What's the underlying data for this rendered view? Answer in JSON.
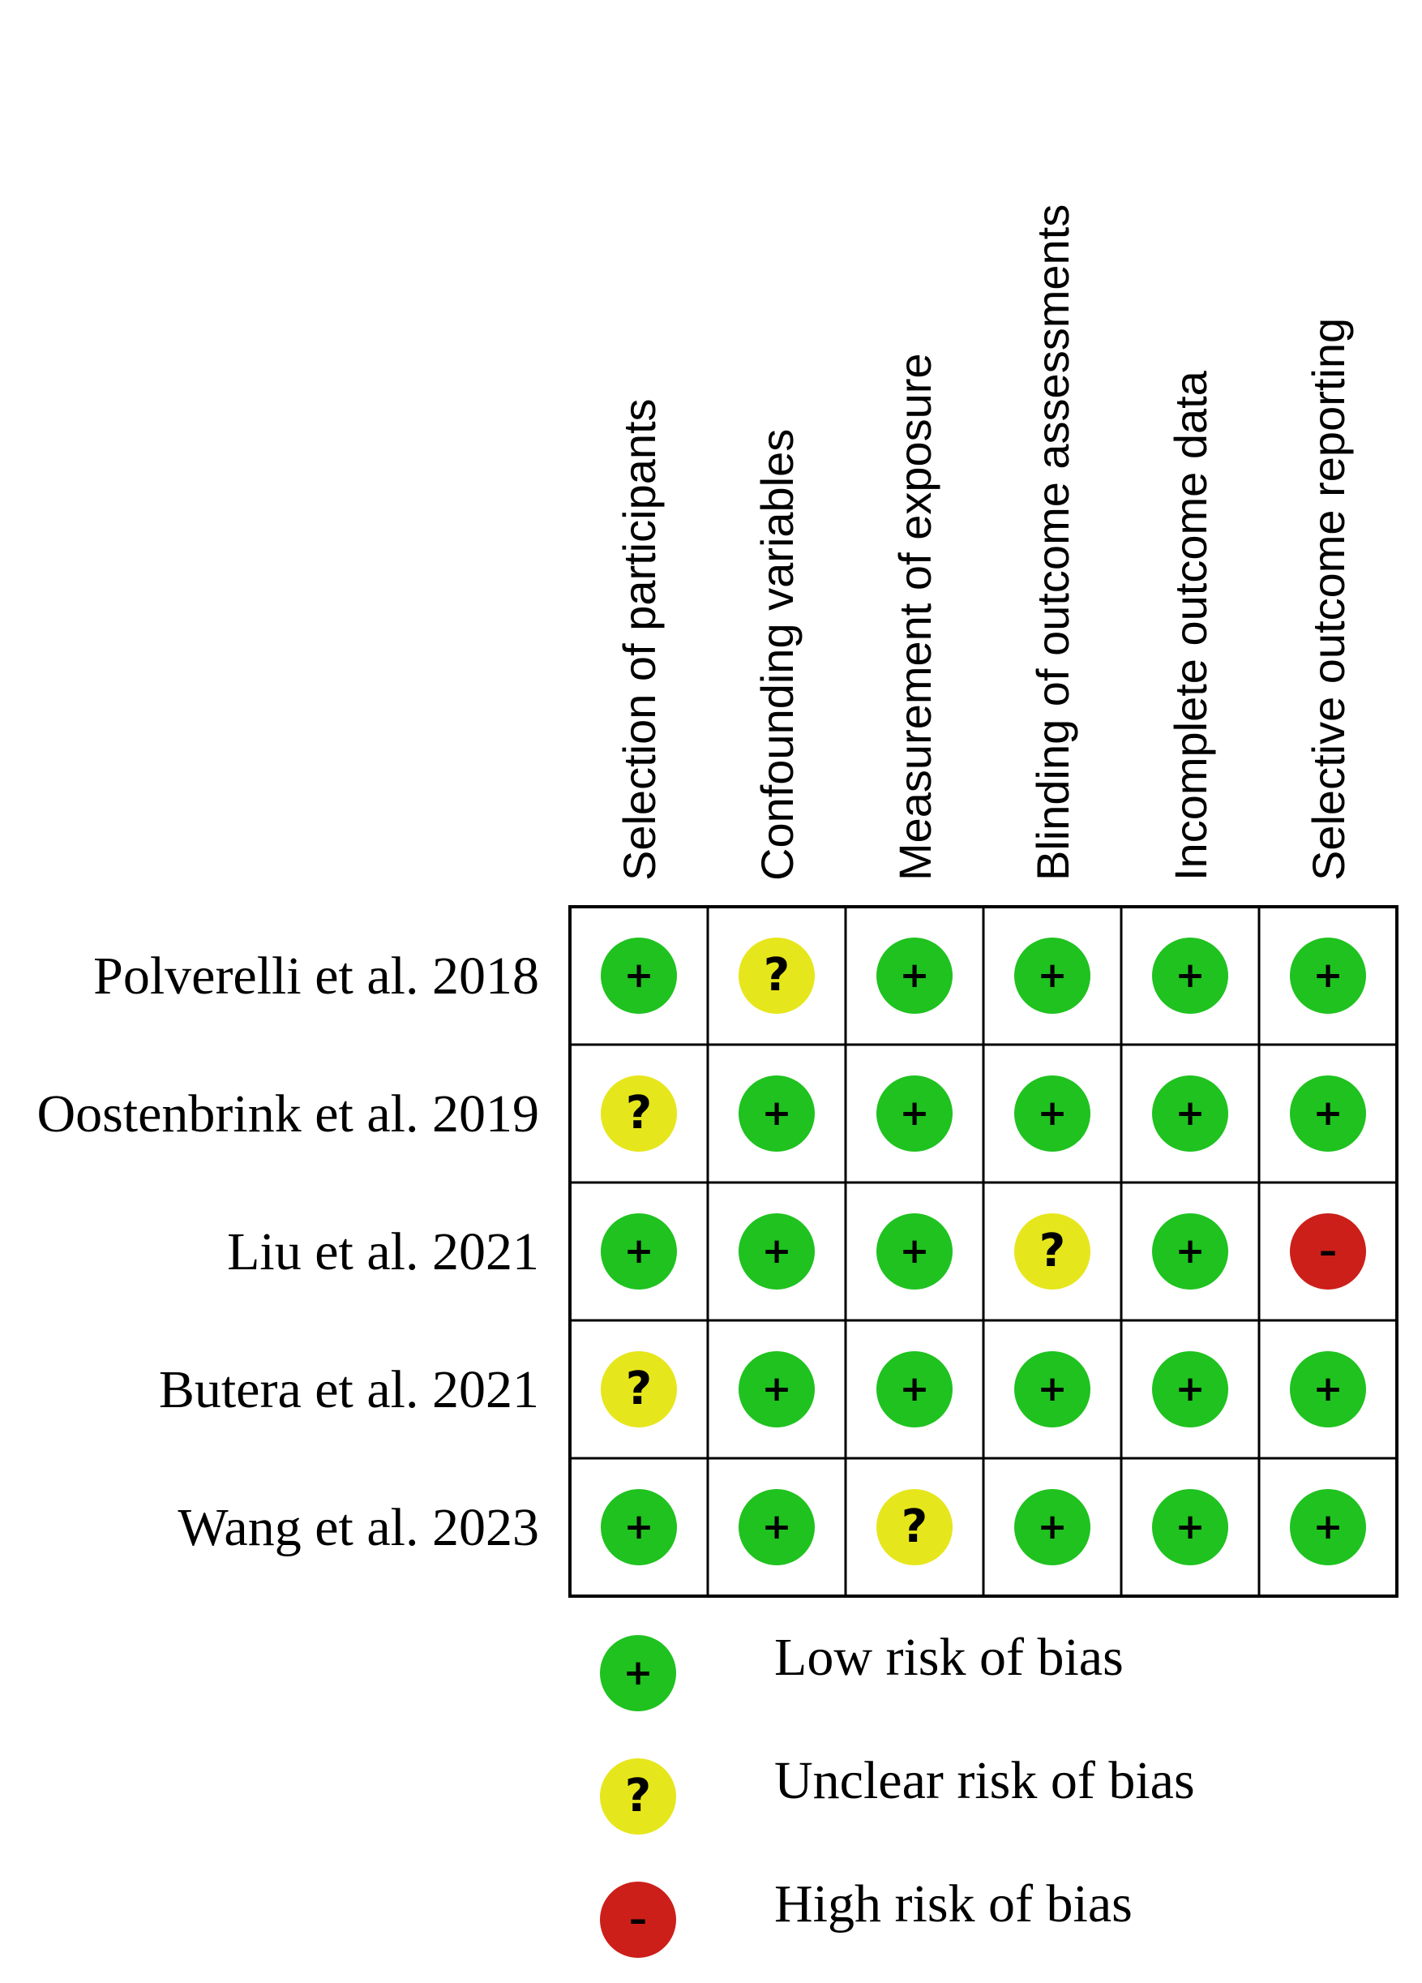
{
  "chart_data": {
    "type": "table",
    "columns": [
      "Selection of participants",
      "Confounding variables",
      "Measurement of exposure",
      "Blinding of outcome assessments",
      "Incomplete outcome data",
      "Selective outcome reporting"
    ],
    "rows": [
      {
        "study": "Polverelli et al. 2018",
        "judgements": [
          "low",
          "unclear",
          "low",
          "low",
          "low",
          "low"
        ]
      },
      {
        "study": "Oostenbrink et al. 2019",
        "judgements": [
          "unclear",
          "low",
          "low",
          "low",
          "low",
          "low"
        ]
      },
      {
        "study": "Liu et al. 2021",
        "judgements": [
          "low",
          "low",
          "low",
          "unclear",
          "low",
          "high"
        ]
      },
      {
        "study": "Butera et al. 2021",
        "judgements": [
          "unclear",
          "low",
          "low",
          "low",
          "low",
          "low"
        ]
      },
      {
        "study": "Wang et al. 2023",
        "judgements": [
          "low",
          "low",
          "unclear",
          "low",
          "low",
          "low"
        ]
      }
    ],
    "legend": [
      {
        "key": "low",
        "symbol": "+",
        "label": "Low risk of bias",
        "color": "#1fc21f"
      },
      {
        "key": "unclear",
        "symbol": "?",
        "label": "Unclear risk of bias",
        "color": "#e6e61c"
      },
      {
        "key": "high",
        "symbol": "–",
        "label": "High risk of bias",
        "color": "#cc1f1a"
      }
    ]
  }
}
